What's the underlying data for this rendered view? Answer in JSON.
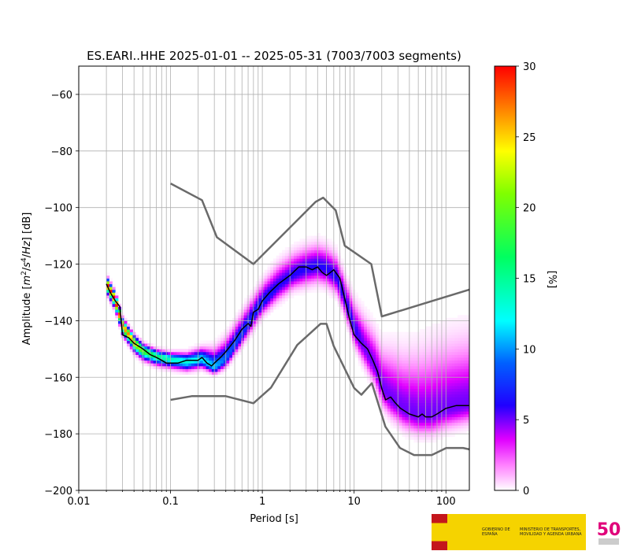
{
  "chart_data": {
    "type": "heatmap",
    "title": "ES.EARI..HHE   2025-01-01 -- 2025-05-31  (7003/7003 segments)",
    "xlabel": "Period [s]",
    "ylabel_parts": {
      "pre": "Amplitude [",
      "m": "m",
      "m_exp": "2",
      "slash1": "/",
      "s": "s",
      "s_exp": "4",
      "slash2": "/",
      "hz": "Hz",
      "post": "] [dB]"
    },
    "xscale": "log",
    "xlim": [
      0.01,
      180
    ],
    "ylim": [
      -200,
      -50
    ],
    "x_ticks": [
      {
        "value": 0.01,
        "label": "0.01"
      },
      {
        "value": 0.1,
        "label": "0.1"
      },
      {
        "value": 1,
        "label": "1"
      },
      {
        "value": 10,
        "label": "10"
      },
      {
        "value": 100,
        "label": "100"
      }
    ],
    "y_ticks": [
      {
        "value": -60,
        "label": "−60"
      },
      {
        "value": -80,
        "label": "−80"
      },
      {
        "value": -100,
        "label": "−100"
      },
      {
        "value": -120,
        "label": "−120"
      },
      {
        "value": -140,
        "label": "−140"
      },
      {
        "value": -160,
        "label": "−160"
      },
      {
        "value": -180,
        "label": "−180"
      },
      {
        "value": -200,
        "label": "−200"
      }
    ],
    "grid": true,
    "colorbar": {
      "label": "[%]",
      "range": [
        0,
        30
      ],
      "ticks": [
        {
          "value": 0,
          "label": "0"
        },
        {
          "value": 5,
          "label": "5"
        },
        {
          "value": 10,
          "label": "10"
        },
        {
          "value": 15,
          "label": "15"
        },
        {
          "value": 20,
          "label": "20"
        },
        {
          "value": 25,
          "label": "25"
        },
        {
          "value": 30,
          "label": "30"
        }
      ]
    },
    "density": {
      "x": [
        0.02,
        0.025,
        0.03,
        0.04,
        0.05,
        0.07,
        0.1,
        0.15,
        0.22,
        0.3,
        0.4,
        0.55,
        0.75,
        1.0,
        1.5,
        2.2,
        3,
        4,
        5,
        6.5,
        8,
        10,
        13,
        17,
        20,
        25,
        35,
        50,
        70,
        100,
        180
      ],
      "mode": [
        -127,
        -133,
        -142,
        -148,
        -151,
        -153,
        -154,
        -155,
        -154,
        -157,
        -154,
        -147,
        -140,
        -134,
        -128,
        -124,
        -122,
        -121,
        -122,
        -125,
        -133,
        -143,
        -150,
        -157,
        -164,
        -168,
        -172,
        -174,
        -174,
        -172,
        -170
      ],
      "spread_lo": [
        4,
        4,
        4,
        4,
        4,
        4,
        4,
        4,
        4,
        3,
        4,
        5,
        6,
        6,
        7,
        7,
        8,
        8,
        8,
        8,
        8,
        8,
        9,
        9,
        9,
        9,
        9,
        9,
        9,
        9,
        9
      ],
      "spread_hi": [
        3,
        3,
        3,
        3,
        3,
        3,
        3,
        4,
        5,
        8,
        9,
        9,
        9,
        9,
        10,
        10,
        10,
        10,
        10,
        10,
        10,
        12,
        14,
        16,
        18,
        22,
        25,
        28,
        30,
        30,
        30
      ],
      "peak_pct": [
        30,
        30,
        28,
        26,
        20,
        16,
        14,
        13,
        12,
        11,
        9,
        8,
        7,
        7,
        6,
        6,
        6,
        6,
        6,
        6,
        6,
        6,
        5,
        5,
        5,
        5,
        5,
        5,
        5,
        5,
        5
      ]
    },
    "series": [
      {
        "role": "mean",
        "color": "#000000",
        "x": [
          0.02,
          0.022,
          0.025,
          0.028,
          0.03,
          0.035,
          0.04,
          0.05,
          0.06,
          0.07,
          0.08,
          0.09,
          0.1,
          0.12,
          0.15,
          0.18,
          0.2,
          0.22,
          0.25,
          0.28,
          0.3,
          0.35,
          0.4,
          0.5,
          0.6,
          0.7,
          0.75,
          0.8,
          0.9,
          1.0,
          1.2,
          1.5,
          2.0,
          2.5,
          3.0,
          3.5,
          4.0,
          4.5,
          5.0,
          5.5,
          6.0,
          7.0,
          8.0,
          9.0,
          10,
          12,
          14,
          16,
          18,
          20,
          22,
          25,
          28,
          32,
          40,
          50,
          55,
          60,
          70,
          80,
          100,
          130,
          160,
          180
        ],
        "y": [
          -127,
          -130,
          -133,
          -135,
          -145,
          -146,
          -148,
          -150,
          -152,
          -153,
          -154,
          -155,
          -155,
          -155,
          -154,
          -154,
          -154,
          -153,
          -155,
          -156,
          -155,
          -153,
          -151,
          -147,
          -143,
          -141,
          -142,
          -137,
          -136,
          -133,
          -130,
          -127,
          -124,
          -121,
          -121,
          -122,
          -121,
          -123,
          -124,
          -123,
          -122,
          -125,
          -133,
          -140,
          -145,
          -148,
          -150,
          -154,
          -158,
          -164,
          -168,
          -167,
          -169,
          -171,
          -173,
          -174,
          -173,
          -174,
          -174,
          -173,
          -171,
          -170,
          -170,
          -170
        ]
      },
      {
        "role": "new-high-noise-model",
        "color": "#6a6a6a",
        "x": [
          0.1,
          0.22,
          0.32,
          0.8,
          3.8,
          4.6,
          6.3,
          7.9,
          15.4,
          20,
          180
        ],
        "y": [
          -91.5,
          -97.4,
          -110.5,
          -120,
          -98,
          -96.5,
          -101,
          -113.5,
          -120,
          -138.5,
          -129
        ]
      },
      {
        "role": "new-low-noise-model",
        "color": "#6a6a6a",
        "x": [
          0.1,
          0.17,
          0.4,
          0.8,
          1.24,
          2.4,
          4.3,
          5.0,
          6.0,
          10,
          12,
          15.6,
          21.9,
          31.6,
          45,
          70,
          101,
          154,
          180
        ],
        "y": [
          -168,
          -166.7,
          -166.7,
          -169.2,
          -163.7,
          -148.6,
          -141.1,
          -141.1,
          -149,
          -163.8,
          -166.2,
          -162.1,
          -177.5,
          -185,
          -187.5,
          -187.5,
          -185,
          -185,
          -185.5
        ]
      }
    ]
  },
  "footer": {
    "logo_gov_text": "GOBIERNO DE ESPAÑA",
    "logo_ministry_text": "MINISTERIO DE TRANSPORTES, MOVILIDAD Y AGENDA URBANA",
    "logo_50_text": "50",
    "logo_ign_text": "Instituto Geográfico Nacional"
  }
}
